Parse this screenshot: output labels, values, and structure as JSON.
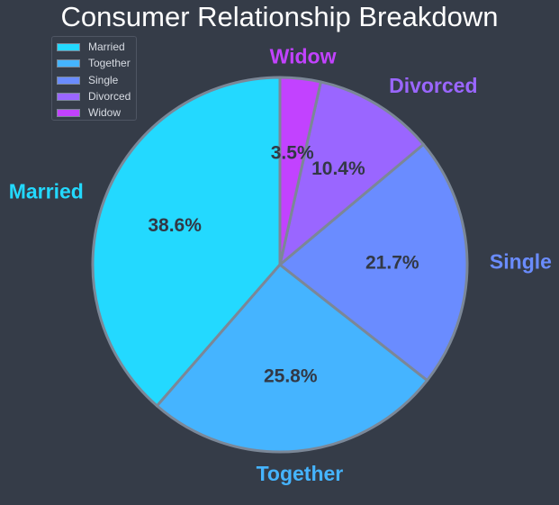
{
  "chart_data": {
    "type": "pie",
    "title": "Consumer Relationship Breakdown",
    "categories": [
      "Married",
      "Together",
      "Single",
      "Divorced",
      "Widow"
    ],
    "values": [
      38.6,
      25.8,
      21.7,
      10.4,
      3.5
    ],
    "value_labels": [
      "38.6%",
      "25.8%",
      "21.7%",
      "10.4%",
      "3.5%"
    ],
    "colors": [
      "#23d9ff",
      "#45b4ff",
      "#6a8cff",
      "#9a66ff",
      "#c242ff"
    ],
    "start_angle_deg": 90,
    "direction": "counterclockwise",
    "legend_position": "top-left",
    "legend": [
      "Married",
      "Together",
      "Single",
      "Divorced",
      "Widow"
    ]
  }
}
